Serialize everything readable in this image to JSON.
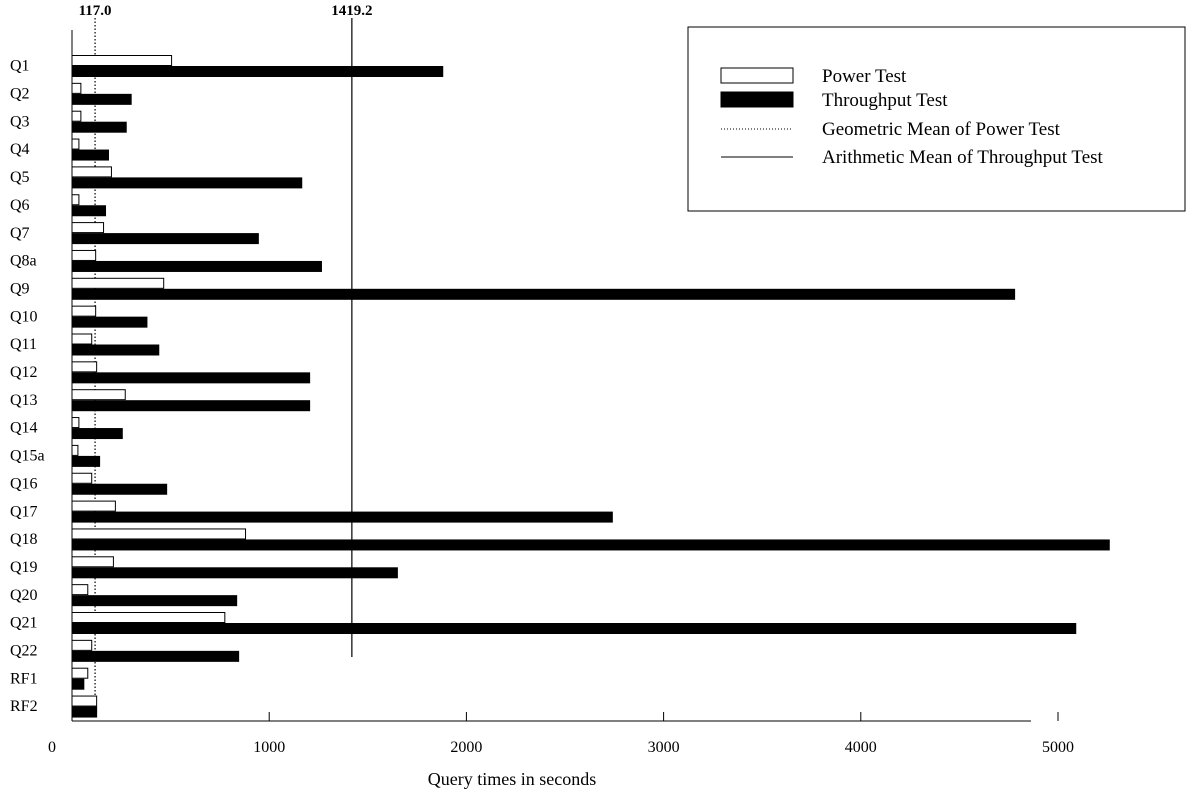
{
  "chart_data": {
    "type": "bar",
    "orientation": "horizontal",
    "categories": [
      "Q1",
      "Q2",
      "Q3",
      "Q4",
      "Q5",
      "Q6",
      "Q7",
      "Q8a",
      "Q9",
      "Q10",
      "Q11",
      "Q12",
      "Q13",
      "Q14",
      "Q15a",
      "Q16",
      "Q17",
      "Q18",
      "Q19",
      "Q20",
      "Q21",
      "Q22",
      "RF1",
      "RF2"
    ],
    "series": [
      {
        "name": "Power Test",
        "fill": "#ffffff",
        "values": [
          505,
          45,
          45,
          35,
          200,
          35,
          160,
          120,
          465,
          120,
          100,
          125,
          270,
          35,
          30,
          100,
          220,
          880,
          210,
          80,
          775,
          100,
          80,
          125
        ]
      },
      {
        "name": "Throughput Test",
        "fill": "#000000",
        "values": [
          1880,
          300,
          275,
          185,
          1165,
          170,
          945,
          1265,
          4780,
          380,
          440,
          1205,
          1205,
          255,
          140,
          480,
          2740,
          5260,
          1650,
          835,
          5090,
          845,
          60,
          125
        ]
      }
    ],
    "reference_lines": [
      {
        "name": "Geometric Mean of Power Test",
        "value": 117.0,
        "label": "117.0",
        "style": "dotted"
      },
      {
        "name": "Arithmetic Mean of Throughput Test",
        "value": 1419.2,
        "label": "1419.2",
        "style": "solid"
      }
    ],
    "xlim": [
      0,
      5400
    ],
    "xticks": [
      0,
      1000,
      2000,
      3000,
      4000,
      5000
    ],
    "xtick_labels": [
      "0",
      "1000",
      "2000",
      "3000",
      "4000",
      "5000"
    ],
    "xlabel": "Query times in seconds",
    "ylabel": "",
    "title": "",
    "legend_position": "top-right",
    "grid": false
  }
}
